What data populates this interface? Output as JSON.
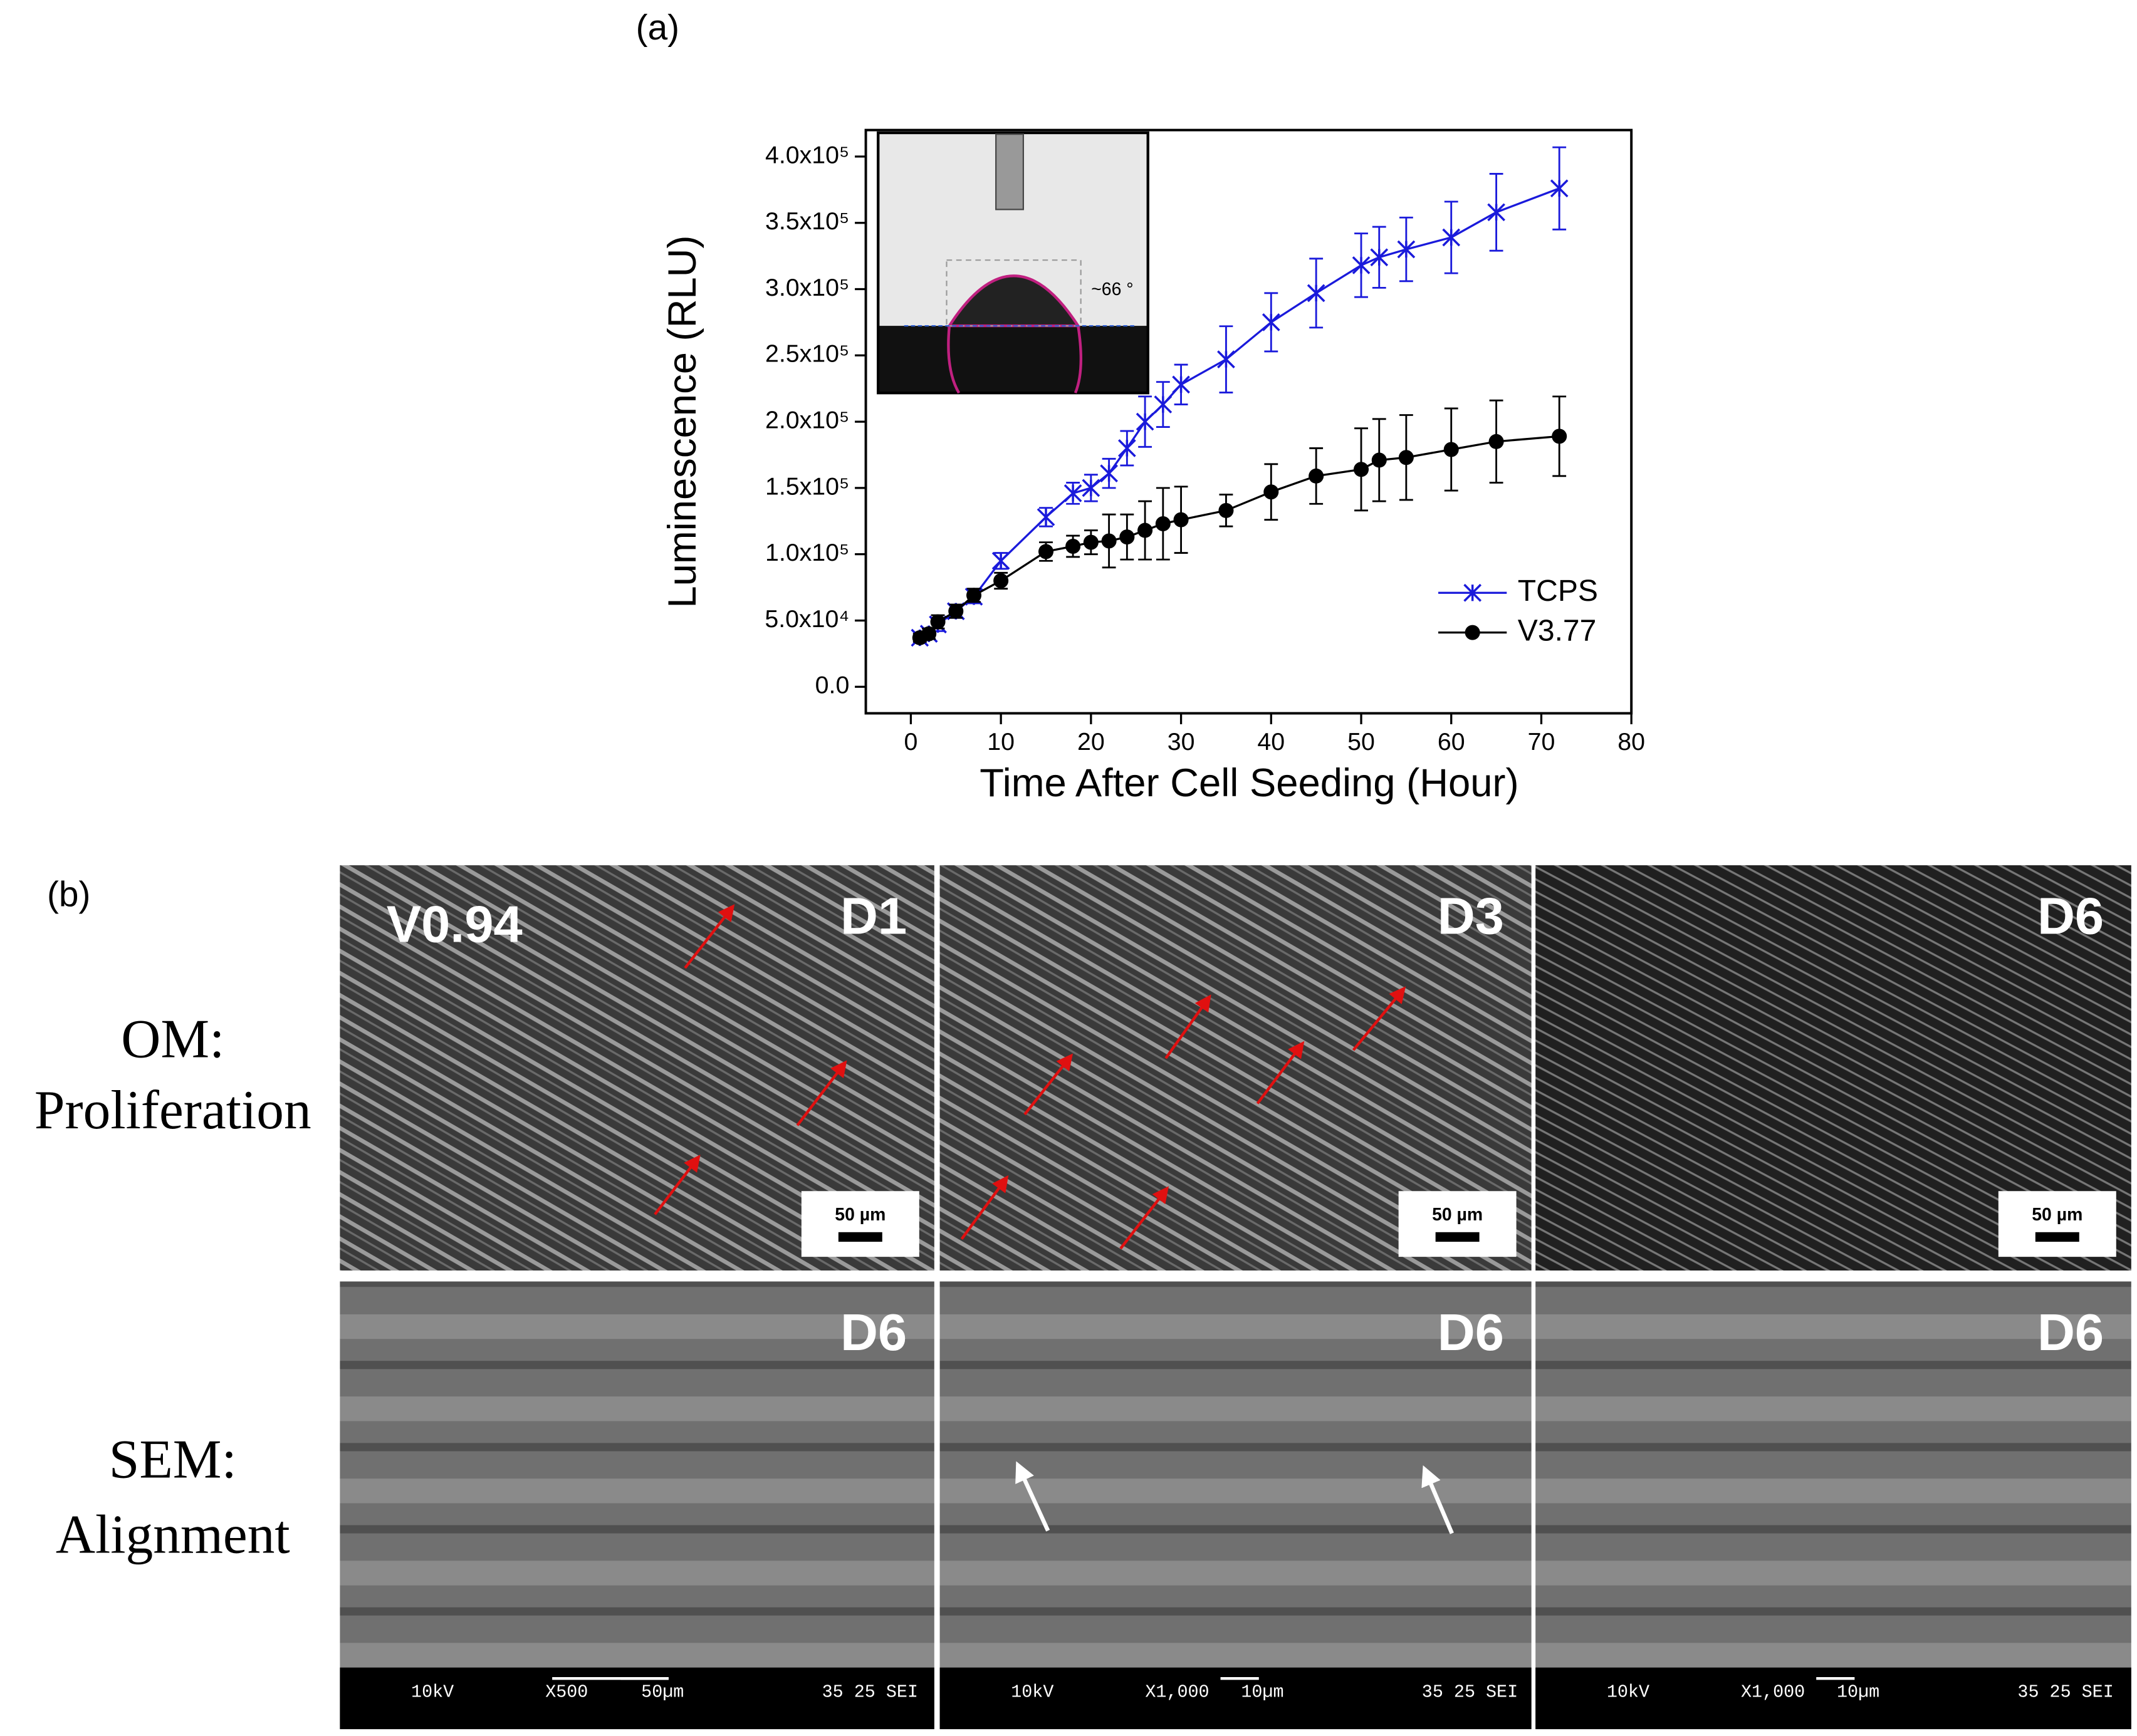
{
  "chart_data": {
    "type": "line",
    "label": "(a)",
    "x_label": "Time After Cell Seeding (Hour)",
    "y_label": "Luminescence (RLU)",
    "inset_label": "~66 °",
    "x": [
      1,
      2,
      3,
      5,
      7,
      10,
      15,
      18,
      20,
      22,
      24,
      26,
      28,
      30,
      35,
      40,
      45,
      50,
      52,
      55,
      60,
      65,
      72
    ],
    "series": [
      {
        "name": "TCPS",
        "color": "#1a1adb",
        "marker": "asterisk",
        "values": [
          37000,
          40000,
          47000,
          57000,
          68000,
          95000,
          128000,
          146000,
          150000,
          161000,
          180000,
          200000,
          213000,
          228000,
          247000,
          275000,
          297000,
          318000,
          324000,
          330000,
          339000,
          358000,
          376000
        ],
        "errors": [
          3000,
          4000,
          5000,
          5000,
          5000,
          6000,
          7000,
          8000,
          10000,
          11000,
          13000,
          19000,
          17000,
          15000,
          25000,
          22000,
          26000,
          24000,
          23000,
          24000,
          27000,
          29000,
          31000
        ]
      },
      {
        "name": "V3.77",
        "color": "#000000",
        "marker": "circle",
        "values": [
          37000,
          40000,
          49000,
          57000,
          69000,
          80000,
          102000,
          106000,
          109000,
          110000,
          113000,
          118000,
          123000,
          126000,
          133000,
          147000,
          159000,
          164000,
          171000,
          173000,
          179000,
          185000,
          189000
        ],
        "errors": [
          3000,
          4000,
          5000,
          5000,
          5000,
          6000,
          7000,
          8000,
          9000,
          20000,
          17000,
          22000,
          27000,
          25000,
          12000,
          21000,
          21000,
          31000,
          31000,
          32000,
          31000,
          31000,
          30000
        ]
      }
    ],
    "xlim": [
      -5,
      80
    ],
    "xticks": [
      0,
      10,
      20,
      30,
      40,
      50,
      60,
      70,
      80
    ],
    "ylim": [
      -20000,
      420000
    ],
    "yticks": [
      {
        "value": 0,
        "label": "0.0"
      },
      {
        "value": 50000,
        "label": "5.0x10⁴"
      },
      {
        "value": 100000,
        "label": "1.0x10⁵"
      },
      {
        "value": 150000,
        "label": "1.5x10⁵"
      },
      {
        "value": 200000,
        "label": "2.0x10⁵"
      },
      {
        "value": 250000,
        "label": "2.5x10⁵"
      },
      {
        "value": 300000,
        "label": "3.0x10⁵"
      },
      {
        "value": 350000,
        "label": "3.5x10⁵"
      },
      {
        "value": 400000,
        "label": "4.0x10⁵"
      }
    ],
    "legend": "lower right"
  },
  "figure_b": {
    "label": "(b)",
    "row_labels": [
      [
        "OM:",
        "Proliferation"
      ],
      [
        "SEM:",
        "Alignment"
      ]
    ],
    "sample_label": "V0.94",
    "panel_tags": [
      [
        "D1",
        "D3",
        "D6"
      ],
      [
        "D6",
        "D6",
        "D6"
      ]
    ],
    "scale_bars": [
      "50 µm",
      "50 µm",
      "50 µm"
    ],
    "sem_footers": [
      [
        "10kV",
        "X500",
        "50µm",
        "35 25 SEI"
      ],
      [
        "10kV",
        "X1,000",
        "10µm",
        "35 25 SEI"
      ],
      [
        "10kV",
        "X1,000",
        "10µm",
        "35 25 SEI"
      ]
    ]
  }
}
